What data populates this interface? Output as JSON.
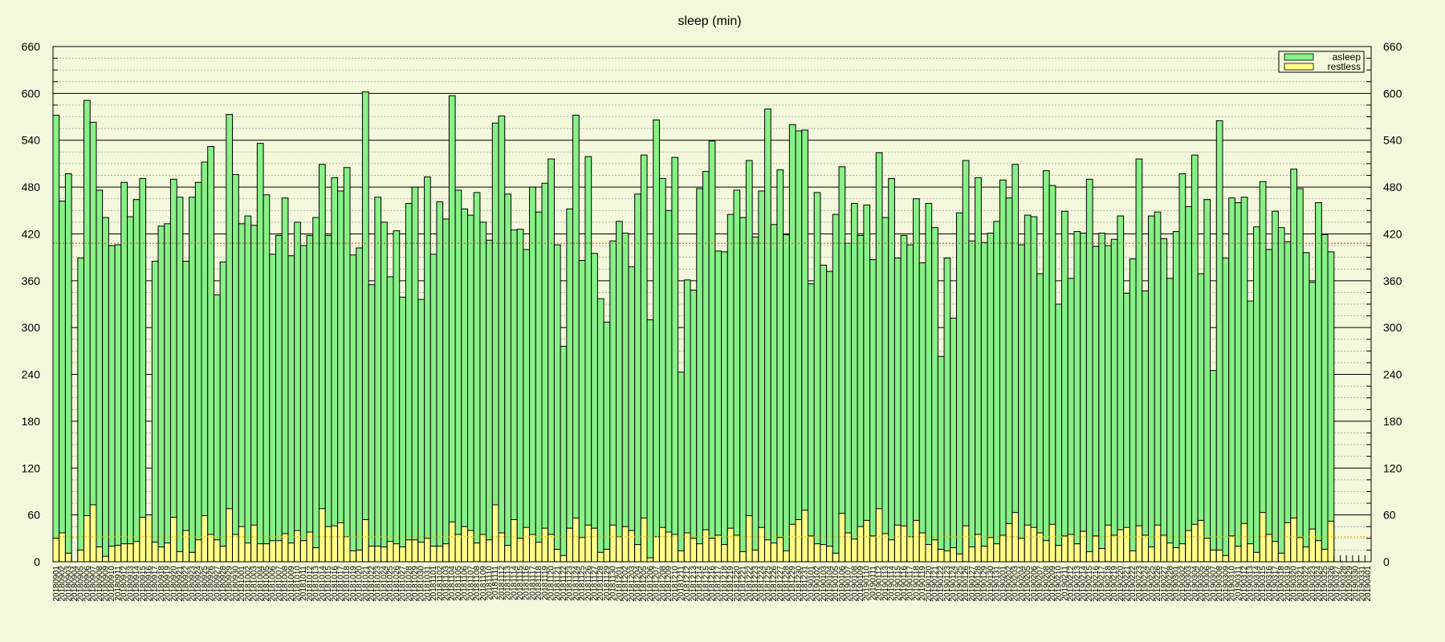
{
  "chart_data": {
    "type": "bar",
    "title": "sleep (min)",
    "xlabel": "",
    "ylabel": "",
    "ylim": [
      0,
      660
    ],
    "yticks": [
      0,
      60,
      120,
      180,
      240,
      300,
      360,
      420,
      480,
      540,
      600,
      660
    ],
    "grid": true,
    "legend_position": "top-right",
    "reference_lines": [
      {
        "value": 408,
        "color": "#e03030"
      },
      {
        "value": 32,
        "color": "#e0b000"
      }
    ],
    "colors": {
      "asleep": "#88f088",
      "restless": "#ffff88",
      "background": "#f2f8d9"
    },
    "start_date": "20180901",
    "series": [
      {
        "name": "asleep",
        "values": [
          572,
          462,
          497,
          0,
          389,
          591,
          563,
          476,
          441,
          405,
          406,
          486,
          442,
          464,
          491,
          0,
          385,
          430,
          433,
          490,
          467,
          385,
          467,
          486,
          512,
          532,
          342,
          384,
          573,
          496,
          433,
          443,
          431,
          536,
          470,
          394,
          418,
          466,
          392,
          435,
          405,
          418,
          441,
          509,
          418,
          492,
          475,
          505,
          393,
          402,
          602,
          355,
          467,
          435,
          365,
          424,
          339,
          459,
          480,
          336,
          493,
          394,
          461,
          439,
          597,
          476,
          452,
          444,
          473,
          435,
          412,
          562,
          571,
          471,
          425,
          426,
          400,
          480,
          448,
          485,
          516,
          406,
          276,
          452,
          572,
          386,
          519,
          395,
          337,
          307,
          411,
          436,
          421,
          378,
          471,
          521,
          310,
          566,
          491,
          450,
          518,
          243,
          361,
          348,
          478,
          500,
          539,
          398,
          397,
          445,
          476,
          441,
          514,
          416,
          475,
          580,
          432,
          502,
          419,
          560,
          552,
          553,
          356,
          473,
          380,
          372,
          445,
          506,
          408,
          459,
          418,
          457,
          387,
          524,
          441,
          491,
          389,
          418,
          406,
          465,
          383,
          459,
          428,
          263,
          389,
          312,
          447,
          514,
          411,
          492,
          409,
          421,
          436,
          489,
          466,
          509,
          406,
          444,
          442,
          369,
          501,
          482,
          330,
          449,
          363,
          423,
          421,
          490,
          404,
          421,
          405,
          413,
          443,
          344,
          388,
          516,
          347,
          443,
          448,
          414,
          363,
          423,
          497,
          455,
          521,
          369,
          464,
          245,
          565,
          389,
          466,
          460,
          467,
          334,
          429,
          487,
          400,
          449,
          428,
          410,
          503,
          478,
          396,
          358,
          460,
          419,
          397,
          0,
          0,
          0,
          0,
          0,
          0
        ]
      },
      {
        "name": "restless",
        "values": [
          30,
          37,
          11,
          0,
          15,
          59,
          73,
          19,
          7,
          20,
          21,
          23,
          23,
          26,
          57,
          60,
          25,
          19,
          24,
          57,
          13,
          40,
          12,
          28,
          59,
          35,
          28,
          20,
          68,
          35,
          45,
          24,
          47,
          23,
          23,
          27,
          27,
          36,
          24,
          40,
          27,
          38,
          18,
          68,
          45,
          46,
          50,
          32,
          14,
          15,
          54,
          20,
          20,
          19,
          26,
          23,
          19,
          28,
          28,
          25,
          30,
          20,
          20,
          23,
          51,
          35,
          45,
          40,
          24,
          35,
          28,
          73,
          37,
          21,
          54,
          30,
          44,
          35,
          25,
          43,
          35,
          16,
          8,
          43,
          56,
          31,
          47,
          43,
          12,
          16,
          47,
          32,
          45,
          40,
          22,
          56,
          5,
          32,
          44,
          38,
          35,
          14,
          37,
          30,
          23,
          41,
          30,
          34,
          22,
          43,
          34,
          13,
          59,
          15,
          44,
          28,
          24,
          31,
          14,
          48,
          54,
          66,
          33,
          23,
          22,
          20,
          11,
          62,
          37,
          29,
          45,
          53,
          33,
          68,
          36,
          28,
          47,
          46,
          32,
          53,
          37,
          22,
          28,
          16,
          14,
          18,
          10,
          46,
          19,
          35,
          20,
          31,
          23,
          34,
          49,
          63,
          30,
          47,
          44,
          37,
          27,
          48,
          21,
          33,
          35,
          23,
          39,
          13,
          33,
          17,
          47,
          34,
          41,
          44,
          14,
          46,
          34,
          19,
          47,
          34,
          24,
          18,
          23,
          40,
          48,
          53,
          30,
          15,
          15,
          8,
          33,
          20,
          49,
          23,
          12,
          63,
          35,
          26,
          11,
          50,
          56,
          31,
          19,
          42,
          27,
          16,
          52,
          0,
          0,
          0,
          0,
          0,
          0
        ]
      }
    ]
  }
}
